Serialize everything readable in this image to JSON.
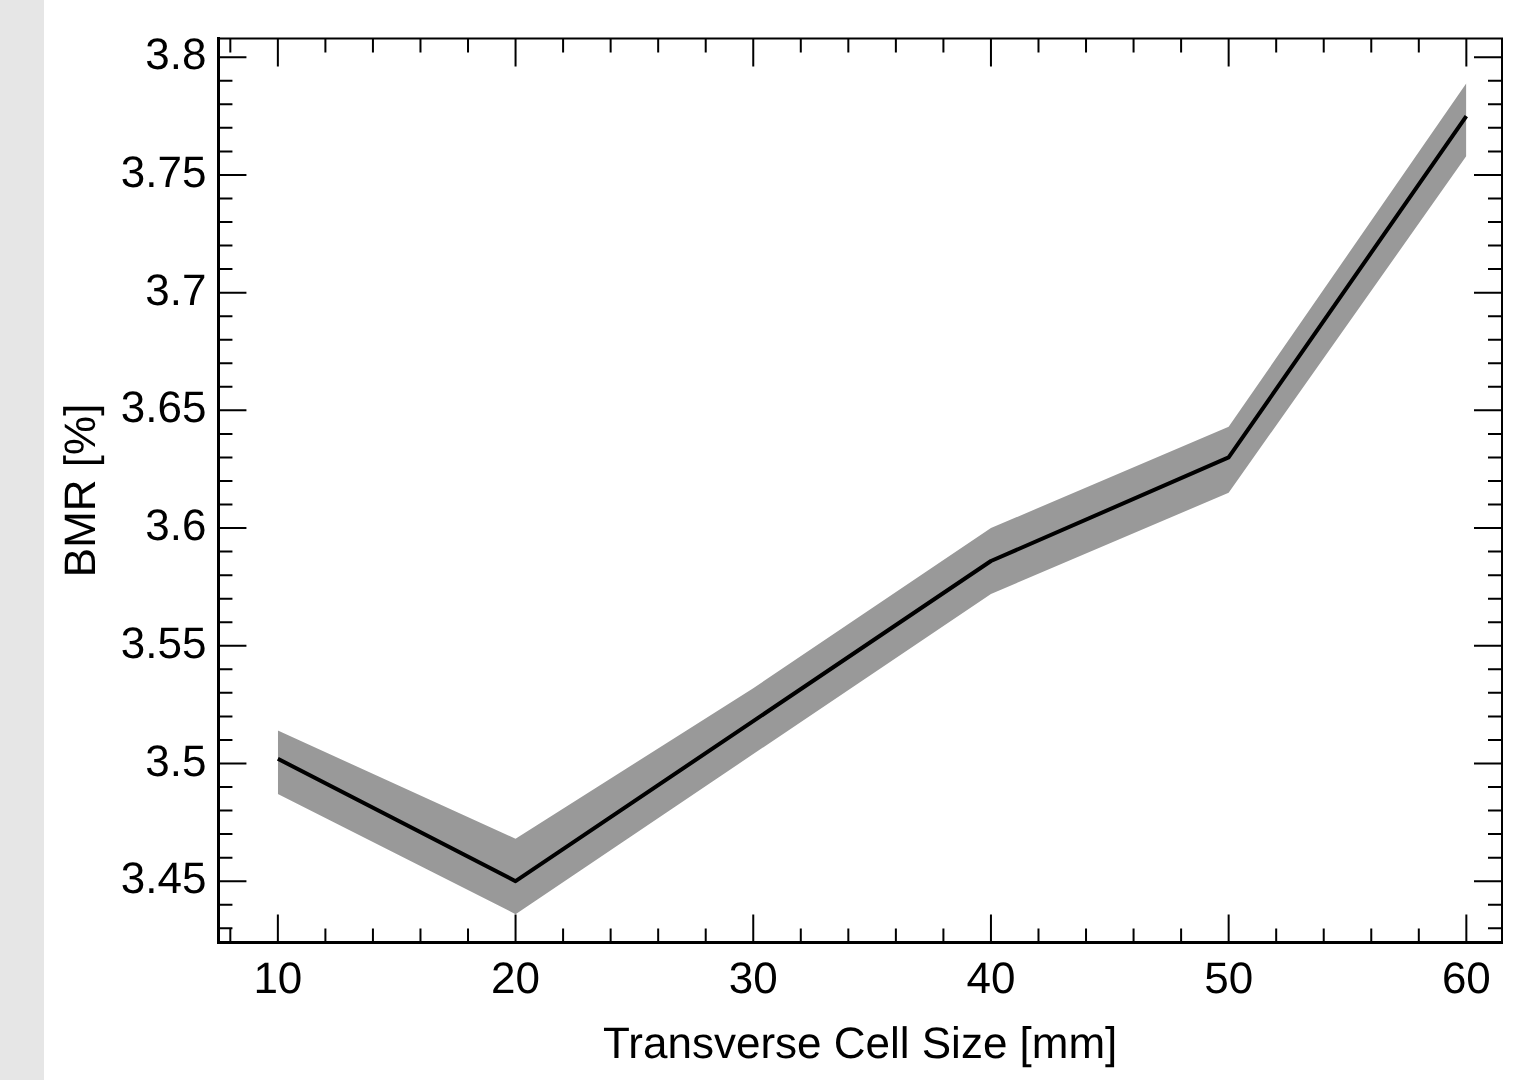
{
  "chart_data": {
    "type": "line",
    "xlabel": "Transverse Cell Size [mm]",
    "ylabel": "BMR [%]",
    "x": [
      10,
      20,
      30,
      40,
      50,
      60
    ],
    "series": [
      {
        "color": "#000000",
        "values": [
          3.502,
          3.45,
          3.518,
          3.586,
          3.63,
          3.775
        ],
        "lower": [
          3.487,
          3.436,
          3.504,
          3.572,
          3.615,
          3.758
        ],
        "upper": [
          3.514,
          3.468,
          3.532,
          3.6,
          3.643,
          3.789
        ]
      }
    ],
    "xlim": [
      7.5,
      61.5
    ],
    "xticks": [
      {
        "value": 8,
        "label": null
      },
      10,
      {
        "value": 12,
        "label": null
      },
      {
        "value": 14,
        "label": null
      },
      {
        "value": 16,
        "label": null
      },
      {
        "value": 18,
        "label": null
      },
      20,
      {
        "value": 22,
        "label": null
      },
      {
        "value": 24,
        "label": null
      },
      {
        "value": 26,
        "label": null
      },
      {
        "value": 28,
        "label": null
      },
      30,
      {
        "value": 32,
        "label": null
      },
      {
        "value": 34,
        "label": null
      },
      {
        "value": 36,
        "label": null
      },
      {
        "value": 38,
        "label": null
      },
      40,
      {
        "value": 42,
        "label": null
      },
      {
        "value": 44,
        "label": null
      },
      {
        "value": 46,
        "label": null
      },
      {
        "value": 48,
        "label": null
      },
      50,
      {
        "value": 52,
        "label": null
      },
      {
        "value": 54,
        "label": null
      },
      {
        "value": 56,
        "label": null
      },
      {
        "value": 58,
        "label": null
      },
      60
    ],
    "ylim": [
      3.424,
      3.808
    ],
    "yticks": [
      {
        "value": 3.43,
        "label": null
      },
      {
        "value": 3.44,
        "label": null
      },
      3.45,
      {
        "value": 3.46,
        "label": null
      },
      {
        "value": 3.47,
        "label": null
      },
      {
        "value": 3.48,
        "label": null
      },
      {
        "value": 3.49,
        "label": null
      },
      3.5,
      {
        "value": 3.51,
        "label": null
      },
      {
        "value": 3.52,
        "label": null
      },
      {
        "value": 3.53,
        "label": null
      },
      {
        "value": 3.54,
        "label": null
      },
      3.55,
      {
        "value": 3.56,
        "label": null
      },
      {
        "value": 3.57,
        "label": null
      },
      {
        "value": 3.58,
        "label": null
      },
      {
        "value": 3.59,
        "label": null
      },
      3.6,
      {
        "value": 3.61,
        "label": null
      },
      {
        "value": 3.62,
        "label": null
      },
      {
        "value": 3.63,
        "label": null
      },
      {
        "value": 3.64,
        "label": null
      },
      3.65,
      {
        "value": 3.66,
        "label": null
      },
      {
        "value": 3.67,
        "label": null
      },
      {
        "value": 3.68,
        "label": null
      },
      {
        "value": 3.69,
        "label": null
      },
      3.7,
      {
        "value": 3.71,
        "label": null
      },
      {
        "value": 3.72,
        "label": null
      },
      {
        "value": 3.73,
        "label": null
      },
      {
        "value": 3.74,
        "label": null
      },
      3.75,
      {
        "value": 3.76,
        "label": null
      },
      {
        "value": 3.77,
        "label": null
      },
      {
        "value": 3.78,
        "label": null
      },
      {
        "value": 3.79,
        "label": null
      },
      3.8
    ],
    "grid": false,
    "legend": false,
    "marker": "none",
    "line_style": "solid"
  }
}
